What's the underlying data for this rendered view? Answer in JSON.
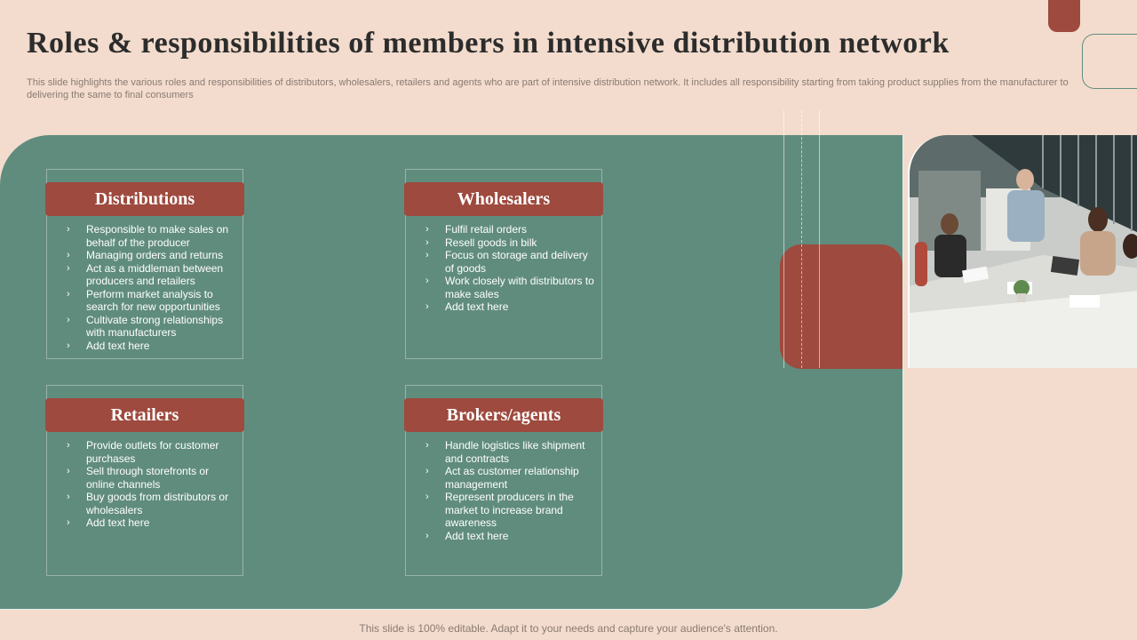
{
  "slide": {
    "title": "Roles & responsibilities of members in intensive distribution network",
    "subtitle": "This slide highlights the various roles and responsibilities of distributors, wholesalers, retailers and agents who are part of intensive distribution network. It includes all responsibility starting from taking product supplies from the manufacturer to delivering the same to final consumers",
    "footer": "This slide is 100% editable. Adapt it to your needs and capture your audience's attention."
  },
  "colors": {
    "background": "#f3dccd",
    "panel_green": "#608c7e",
    "accent_red": "#9e4a3e"
  },
  "icons": {
    "bullet": "chevron-right-icon"
  },
  "cards": [
    {
      "heading": "Distributions",
      "items": [
        "Responsible to make sales on behalf of the producer",
        "Managing orders and returns",
        "Act  as a middleman between producers and retailers",
        "Perform market analysis to search for new opportunities",
        "Cultivate strong relationships with manufacturers",
        "Add text here"
      ]
    },
    {
      "heading": "Wholesalers",
      "items": [
        "Fulfil retail orders",
        "Resell goods in bilk",
        "Focus on storage and delivery of goods",
        "Work closely with distributors to make sales",
        "Add text here"
      ]
    },
    {
      "heading": "Retailers",
      "items": [
        "Provide outlets for customer purchases",
        "Sell through storefronts or online channels",
        "Buy goods from distributors or wholesalers",
        "Add text here"
      ]
    },
    {
      "heading": "Brokers/agents",
      "items": [
        "Handle logistics like shipment and contracts",
        "Act  as customer relationship management",
        "Represent producers in the market to increase brand awareness",
        "Add text here"
      ]
    }
  ]
}
